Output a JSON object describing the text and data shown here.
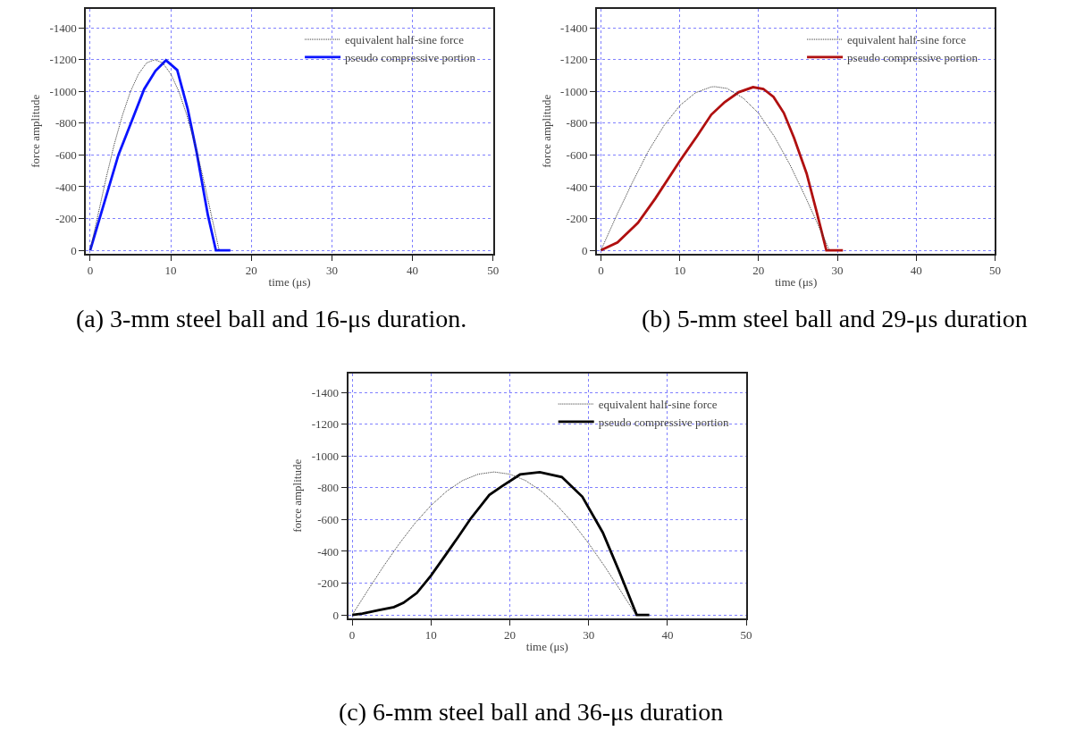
{
  "chart_data": [
    {
      "type": "line",
      "xlabel": "time (μs)",
      "ylabel": "force amplitude",
      "xlim": [
        -0.5,
        50
      ],
      "ylim": [
        20,
        -1520
      ],
      "xticks": [
        0,
        10,
        20,
        30,
        40,
        50
      ],
      "yticks": [
        0,
        -200,
        -400,
        -600,
        -800,
        -1000,
        -1200,
        -1400
      ],
      "grid": true,
      "legend": "top right",
      "marker": "none",
      "annotations": [
        "(a) 3-mm steel ball and 16-μs duration."
      ],
      "series": [
        {
          "name": "equivalent half-sine force",
          "color": "#333333",
          "line_style": "dotted",
          "x": [
            0,
            1,
            2,
            3,
            4,
            5,
            6,
            7,
            8,
            9,
            10,
            11,
            12,
            13,
            14,
            15,
            16
          ],
          "values": [
            0,
            -230,
            -460,
            -670,
            -850,
            -1000,
            -1110,
            -1180,
            -1200,
            -1180,
            -1110,
            -1000,
            -850,
            -670,
            -460,
            -230,
            0
          ]
        },
        {
          "name": "pseudo compressive portion",
          "color": "#0a14ff",
          "line_style": "solid",
          "x": [
            0,
            3.5,
            5.1,
            6.7,
            8.1,
            9.4,
            10.8,
            12.1,
            13.2,
            14.6,
            15.6,
            17.4
          ],
          "values": [
            0,
            -600,
            -806,
            -1015,
            -1130,
            -1196,
            -1135,
            -890,
            -620,
            -223,
            0,
            0
          ]
        }
      ]
    },
    {
      "type": "line",
      "xlabel": "time (μs)",
      "ylabel": "force amplitude",
      "xlim": [
        -0.5,
        50
      ],
      "ylim": [
        20,
        -1520
      ],
      "xticks": [
        0,
        10,
        20,
        30,
        40,
        50
      ],
      "yticks": [
        0,
        -200,
        -400,
        -600,
        -800,
        -1000,
        -1200,
        -1400
      ],
      "grid": true,
      "legend": "top right",
      "marker": "none",
      "annotations": [
        "(b) 5-mm steel ball and 29-μs duration"
      ],
      "series": [
        {
          "name": "equivalent half-sine force",
          "color": "#333333",
          "line_style": "dotted",
          "x": [
            0,
            2,
            4,
            6,
            8,
            10,
            12,
            14,
            14.5,
            16,
            18,
            20,
            22,
            24,
            26,
            28,
            29
          ],
          "values": [
            0,
            -220,
            -428,
            -623,
            -785,
            -911,
            -992,
            -1029,
            -1030,
            -1019,
            -960,
            -863,
            -717,
            -537,
            -330,
            -111,
            0
          ]
        },
        {
          "name": "pseudo compressive portion",
          "color": "#b01010",
          "line_style": "solid",
          "x": [
            0,
            2.1,
            4.7,
            6.9,
            10,
            12.2,
            14,
            15.7,
            17.5,
            19.3,
            20.6,
            21.9,
            23.2,
            24.5,
            26.1,
            27.4,
            28.6,
            30.7
          ],
          "values": [
            0,
            -49,
            -173,
            -326,
            -562,
            -719,
            -854,
            -933,
            -996,
            -1027,
            -1016,
            -966,
            -865,
            -708,
            -483,
            -236,
            0,
            0
          ]
        }
      ]
    },
    {
      "type": "line",
      "xlabel": "time (μs)",
      "ylabel": "force amplitude",
      "xlim": [
        -0.5,
        50
      ],
      "ylim": [
        20,
        -1520
      ],
      "xticks": [
        0,
        10,
        20,
        30,
        40,
        50
      ],
      "yticks": [
        0,
        -200,
        -400,
        -600,
        -800,
        -1000,
        -1200,
        -1400
      ],
      "grid": true,
      "legend": "top right",
      "marker": "none",
      "annotations": [
        "(c) 6-mm steel ball and 36-μs duration"
      ],
      "series": [
        {
          "name": "equivalent half-sine force",
          "color": "#333333",
          "line_style": "dotted",
          "x": [
            0,
            2,
            4,
            6,
            8,
            10,
            12,
            14,
            16,
            18,
            20,
            22,
            24,
            26,
            28,
            30,
            32,
            34,
            36
          ],
          "values": [
            0,
            -156,
            -308,
            -450,
            -579,
            -689,
            -779,
            -846,
            -886,
            -900,
            -886,
            -846,
            -779,
            -689,
            -579,
            -450,
            -308,
            -156,
            0
          ]
        },
        {
          "name": "pseudo compressive portion",
          "color": "#000000",
          "line_style": "solid",
          "x": [
            0,
            1.3,
            3.3,
            5.3,
            6.5,
            8.2,
            10,
            11.8,
            13.4,
            15,
            17.4,
            19,
            21.3,
            23.8,
            26.6,
            29.2,
            31.8,
            33.9,
            36.1,
            37.7
          ],
          "values": [
            0,
            -8,
            -29,
            -49,
            -76,
            -138,
            -247,
            -374,
            -487,
            -604,
            -755,
            -810,
            -884,
            -898,
            -868,
            -744,
            -518,
            -271,
            0,
            0
          ]
        }
      ]
    }
  ]
}
